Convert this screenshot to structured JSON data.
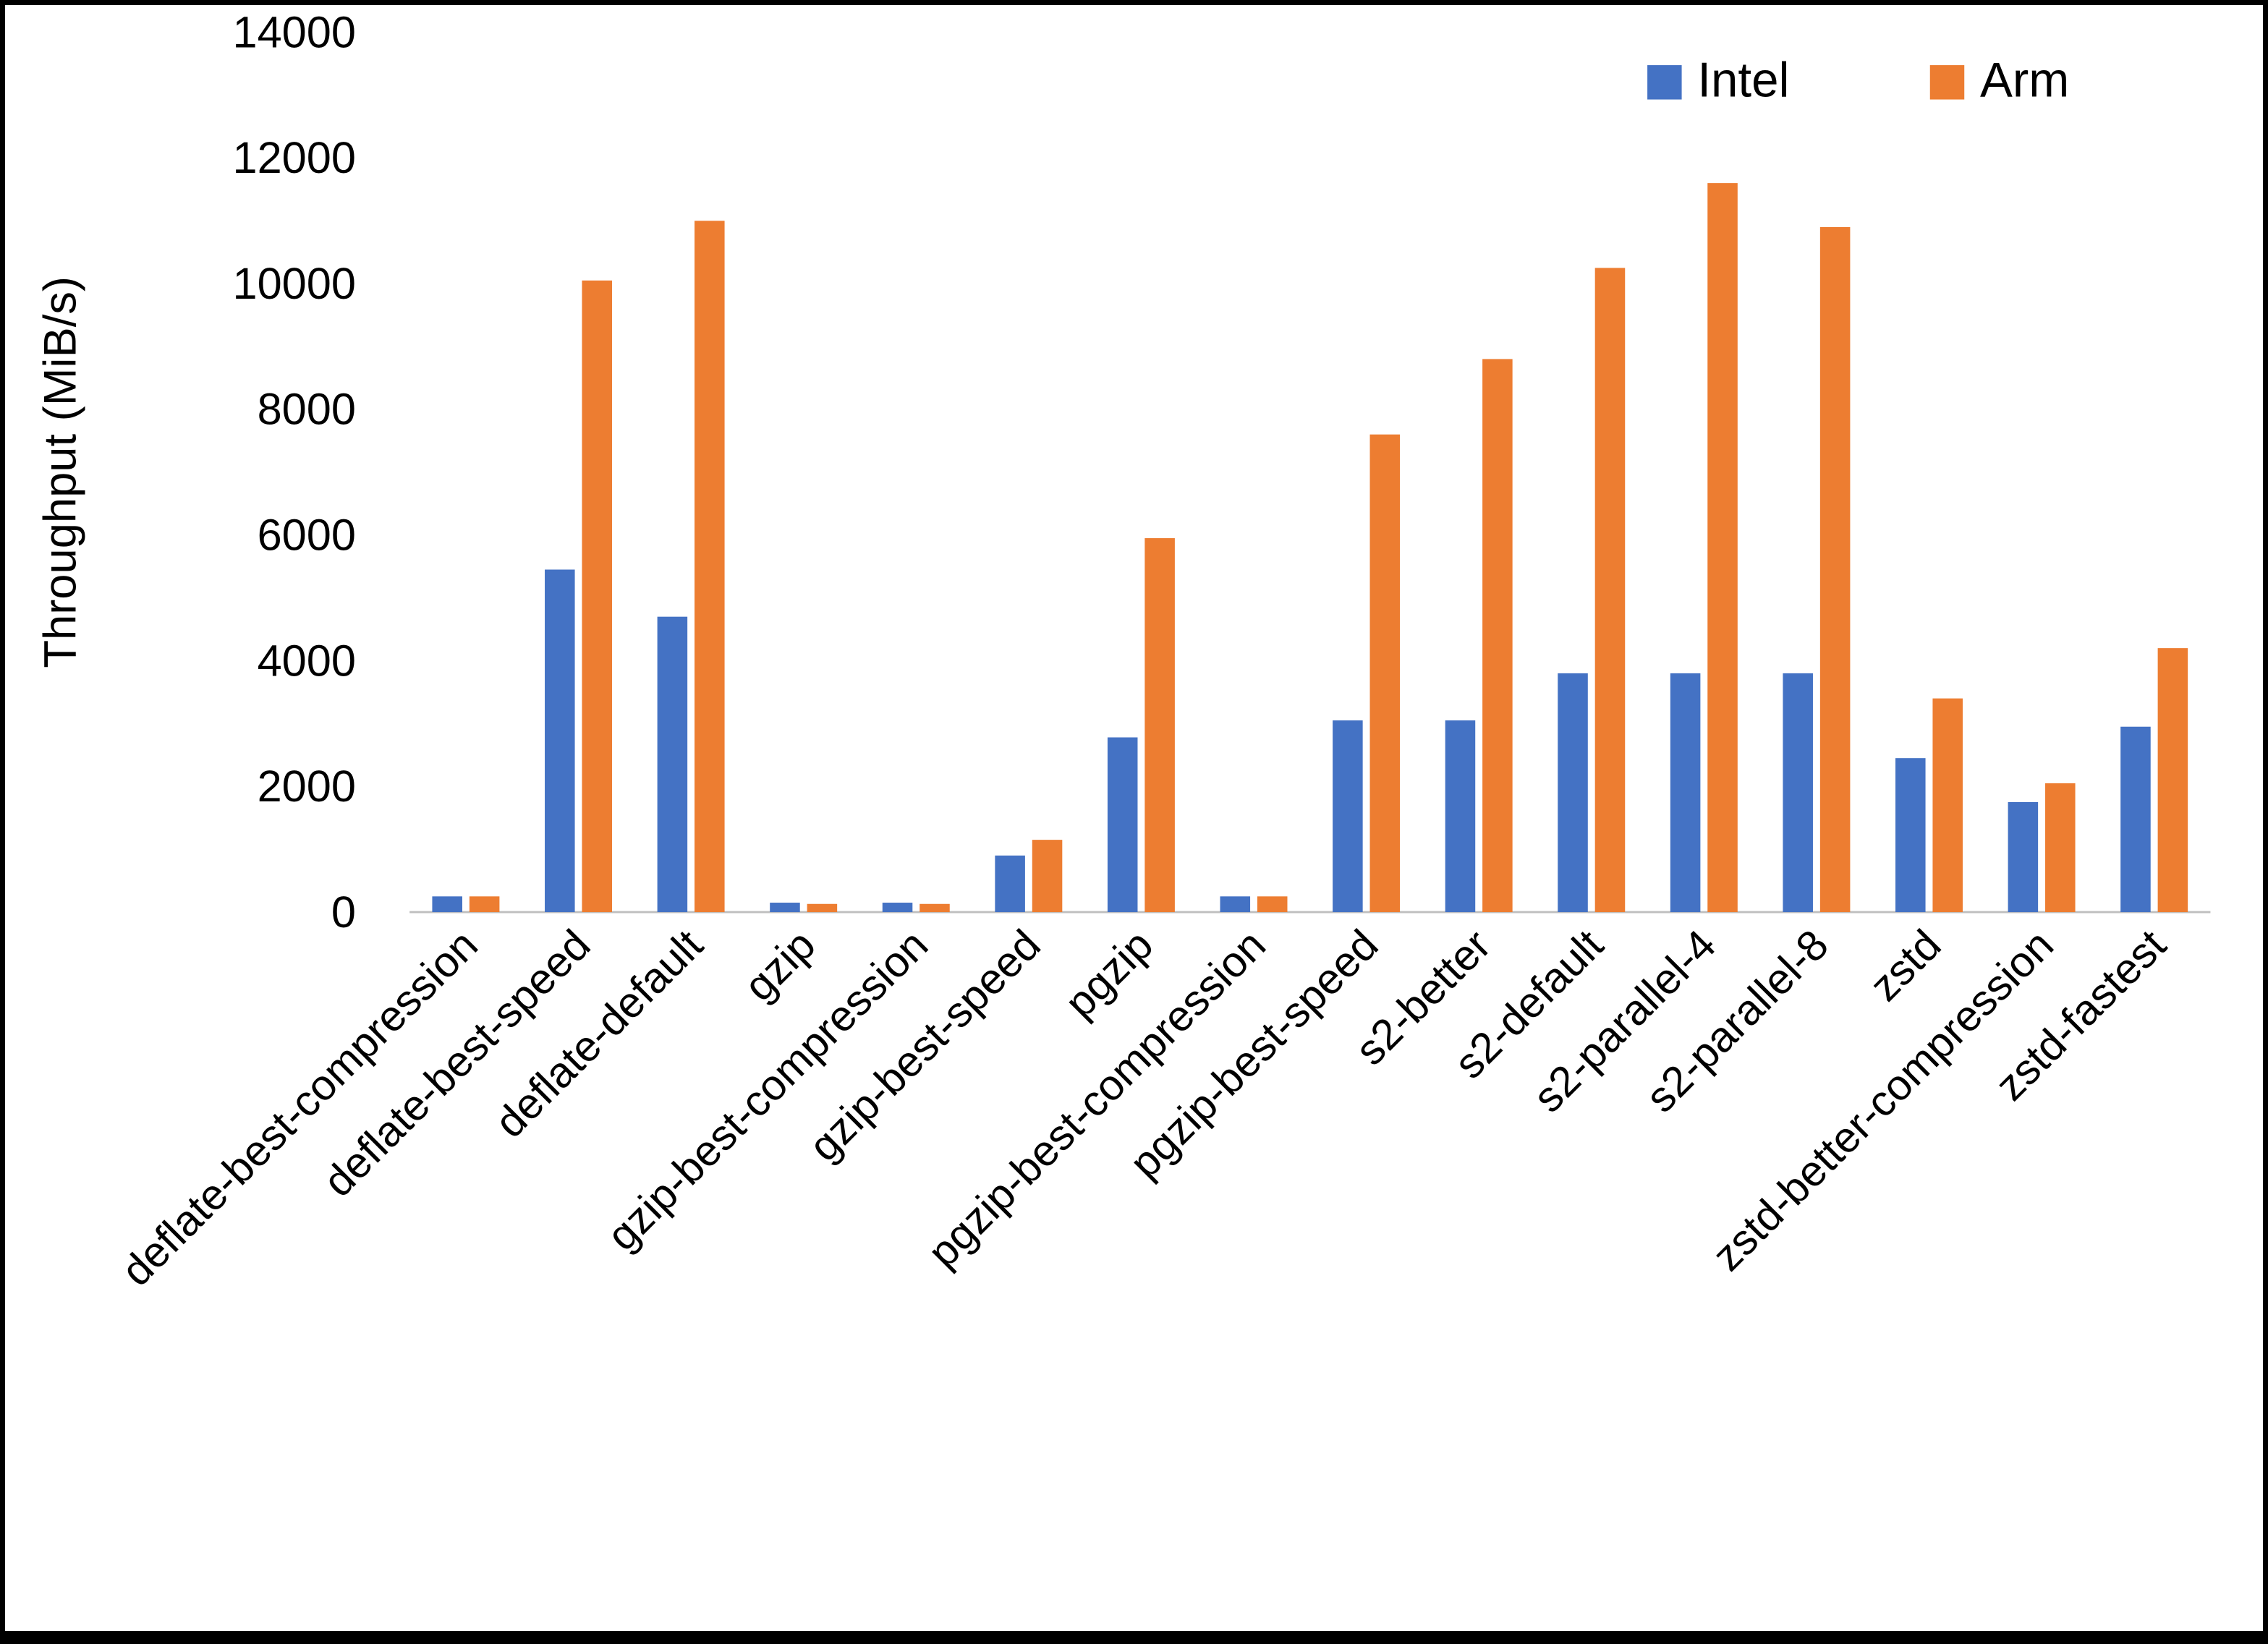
{
  "chart_data": {
    "type": "bar",
    "title": "",
    "xlabel": "",
    "ylabel": "Throughput (MiB/s)",
    "ylim": [
      0,
      14000
    ],
    "ytick_step": 2000,
    "grid": false,
    "legend_position": "top-right",
    "categories": [
      "deflate-best-compression",
      "deflate-best-speed",
      "deflate-default",
      "gzip",
      "gzip-best-compression",
      "gzip-best-speed",
      "pgzip",
      "pgzip-best-compression",
      "pgzip-best-speed",
      "s2-better",
      "s2-default",
      "s2-parallel-4",
      "s2-parallel-8",
      "zstd",
      "zstd-better-compression",
      "zstd-fastest"
    ],
    "series": [
      {
        "name": "Intel",
        "color": "#4472C4",
        "values": [
          250,
          5450,
          4700,
          150,
          150,
          900,
          2780,
          250,
          3050,
          3050,
          3800,
          3800,
          3800,
          2450,
          1750,
          2950
        ]
      },
      {
        "name": "Arm",
        "color": "#ED7D31",
        "values": [
          250,
          10050,
          11000,
          130,
          130,
          1150,
          5950,
          250,
          7600,
          8800,
          10250,
          11600,
          10900,
          3400,
          2050,
          4200
        ]
      }
    ]
  },
  "colors": {
    "background": "#ffffff",
    "border": "#000000",
    "axis_line": "#bfbfbf",
    "text": "#000000"
  }
}
